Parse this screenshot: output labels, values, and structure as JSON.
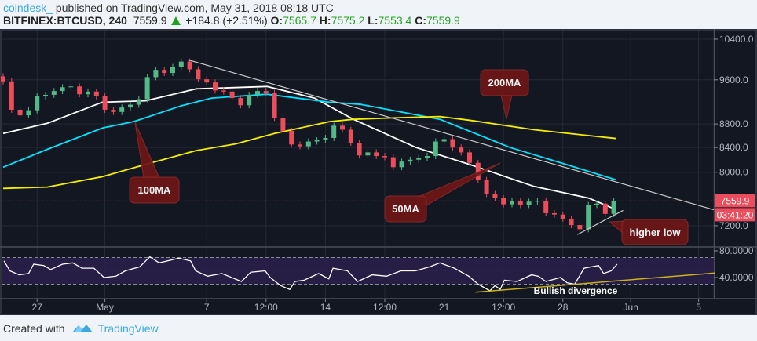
{
  "header": {
    "author": "coindesk_",
    "published": " published on TradingView.com, May 31, 2018 08:18 UTC",
    "symbol": "BITFINEX:BTCUSD, 240",
    "last": "7559.9",
    "change": "+184.8 (+2.51%)",
    "o_label": "O:",
    "o": "7565.7",
    "h_label": "H:",
    "h": "7575.2",
    "l_label": "L:",
    "l": "7553.4",
    "c_label": "C:",
    "c": "7559.9"
  },
  "footer": {
    "created_with": "Created with",
    "brand": "TradingView"
  },
  "colors": {
    "background": "#131722",
    "up": "#53b987",
    "down": "#eb4d5c",
    "ma50": "#ffffff",
    "ma100": "#00e5ff",
    "ma200": "#f5f000",
    "callout": "#6e1616",
    "rsi": "#ffffff",
    "rsi_band": "#2a1f4a"
  },
  "chart_data": {
    "type": "candlestick",
    "title": "BITFINEX:BTCUSD, 240",
    "x_start": "2018-04-25 00:00",
    "x_step_hours": 12,
    "note": "close prices approximated from chart, one per 12h",
    "close": [
      9570,
      9050,
      8950,
      9040,
      9290,
      9320,
      9390,
      9460,
      9475,
      9330,
      9380,
      9290,
      9050,
      9010,
      9090,
      9140,
      9240,
      9650,
      9790,
      9730,
      9845,
      9950,
      9800,
      9610,
      9550,
      9400,
      9380,
      9260,
      9130,
      9320,
      9390,
      9360,
      8905,
      8680,
      8450,
      8420,
      8500,
      8520,
      8560,
      8770,
      8700,
      8480,
      8270,
      8320,
      8260,
      8240,
      8080,
      8170,
      8200,
      8230,
      8260,
      8500,
      8540,
      8400,
      8320,
      8150,
      7880,
      7665,
      7600,
      7510,
      7560,
      7500,
      7550,
      7560,
      7380,
      7360,
      7300,
      7210,
      7150,
      7500,
      7520,
      7370,
      7559.9
    ],
    "moving_averages": [
      {
        "name": "50MA",
        "points": [
          [
            0,
            8635
          ],
          [
            5.2,
            8810
          ],
          [
            11.7,
            9185
          ],
          [
            16.8,
            9210
          ],
          [
            22.8,
            9430
          ],
          [
            31.1,
            9475
          ],
          [
            36.7,
            9260
          ],
          [
            41.3,
            8880
          ],
          [
            48.7,
            8400
          ],
          [
            55.2,
            8115
          ],
          [
            62.6,
            7780
          ],
          [
            69.1,
            7600
          ],
          [
            72.3,
            7430
          ]
        ]
      },
      {
        "name": "100MA",
        "points": [
          [
            0,
            8080
          ],
          [
            5.2,
            8370
          ],
          [
            11.7,
            8730
          ],
          [
            15.4,
            8840
          ],
          [
            20.9,
            9115
          ],
          [
            24.6,
            9260
          ],
          [
            31.1,
            9330
          ],
          [
            38.5,
            9185
          ],
          [
            42.2,
            9145
          ],
          [
            51.5,
            8880
          ],
          [
            59.8,
            8400
          ],
          [
            66.0,
            8140
          ],
          [
            72.3,
            7880
          ]
        ]
      },
      {
        "name": "200MA",
        "points": [
          [
            0,
            7750
          ],
          [
            5.2,
            7770
          ],
          [
            11.7,
            7930
          ],
          [
            17.2,
            8140
          ],
          [
            22.8,
            8350
          ],
          [
            27.4,
            8460
          ],
          [
            32.0,
            8635
          ],
          [
            38.5,
            8840
          ],
          [
            41.3,
            8880
          ],
          [
            45.9,
            8905
          ],
          [
            51.5,
            8930
          ],
          [
            55.2,
            8860
          ],
          [
            62.6,
            8700
          ],
          [
            72.3,
            8550
          ]
        ]
      }
    ],
    "trendlines": [
      {
        "name": "descending-resistance",
        "from": [
          21.9,
          9980
        ],
        "to": [
          83.8,
          7430
        ]
      },
      {
        "name": "higher-low-support",
        "from": [
          67.7,
          7075
        ],
        "to": [
          73.1,
          7420
        ]
      }
    ],
    "y_scale": "log",
    "ylim": [
      6890,
      10560
    ],
    "y_ticks": [
      "10400.0",
      "9600.0",
      "8800.0",
      "8400.0",
      "8000.0",
      "7200.0"
    ],
    "y_tick_values": [
      10400,
      9600,
      8800,
      8400,
      8000,
      7200
    ],
    "x_ticks": [
      {
        "label": "27",
        "index": 4
      },
      {
        "label": "May",
        "index": 12
      },
      {
        "label": "7",
        "index": 24
      },
      {
        "label": "12:00",
        "index": 31
      },
      {
        "label": "14",
        "index": 38
      },
      {
        "label": "12:00",
        "index": 45
      },
      {
        "label": "21",
        "index": 52
      },
      {
        "label": "12:00",
        "index": 59
      },
      {
        "label": "28",
        "index": 66
      },
      {
        "label": "Jun",
        "index": 74
      },
      {
        "label": "5",
        "index": 82
      }
    ],
    "last_price_label": "7559.9",
    "countdown": "03:41:20",
    "annotations": [
      "100MA",
      "200MA",
      "50MA",
      "higher low",
      "Bullish divergence"
    ],
    "rsi": {
      "ylim": [
        8,
        86
      ],
      "y_ticks": [
        "80.0000",
        "40.0000"
      ],
      "y_tick_values": [
        80,
        40
      ],
      "bands": [
        70,
        30
      ],
      "points": [
        [
          0.1,
          65
        ],
        [
          0.8,
          50
        ],
        [
          1.9,
          44
        ],
        [
          3.0,
          46
        ],
        [
          3.6,
          60
        ],
        [
          4.8,
          58
        ],
        [
          5.6,
          52
        ],
        [
          7.0,
          60
        ],
        [
          8.2,
          62
        ],
        [
          9.3,
          54
        ],
        [
          10.7,
          54
        ],
        [
          11.9,
          40
        ],
        [
          13.3,
          42
        ],
        [
          14.4,
          50
        ],
        [
          16.1,
          56
        ],
        [
          17.3,
          71
        ],
        [
          18.4,
          62
        ],
        [
          20.7,
          69
        ],
        [
          22.1,
          65
        ],
        [
          22.7,
          50
        ],
        [
          24.1,
          42
        ],
        [
          25.8,
          46
        ],
        [
          28.1,
          34
        ],
        [
          29.2,
          48
        ],
        [
          30.9,
          50
        ],
        [
          31.5,
          40
        ],
        [
          32.7,
          28
        ],
        [
          33.8,
          22
        ],
        [
          34.4,
          34
        ],
        [
          35.5,
          36
        ],
        [
          37.2,
          46
        ],
        [
          38.4,
          38
        ],
        [
          38.9,
          54
        ],
        [
          40.6,
          50
        ],
        [
          41.8,
          34
        ],
        [
          43.5,
          44
        ],
        [
          45.2,
          42
        ],
        [
          46.9,
          50
        ],
        [
          48.6,
          50
        ],
        [
          50.3,
          56
        ],
        [
          51.5,
          62
        ],
        [
          53.2,
          54
        ],
        [
          54.9,
          42
        ],
        [
          56.0,
          30
        ],
        [
          57.4,
          20
        ],
        [
          58.0,
          28
        ],
        [
          58.6,
          22
        ],
        [
          59.1,
          36
        ],
        [
          60.6,
          34
        ],
        [
          62.3,
          44
        ],
        [
          63.1,
          42
        ],
        [
          64.0,
          34
        ],
        [
          65.7,
          40
        ],
        [
          66.5,
          32
        ],
        [
          67.4,
          30
        ],
        [
          68.5,
          54
        ],
        [
          70.2,
          58
        ],
        [
          70.8,
          46
        ],
        [
          71.7,
          50
        ],
        [
          72.4,
          60
        ]
      ],
      "divergence_line": {
        "from": [
          55.7,
          18
        ],
        "to": [
          83.9,
          46.7
        ]
      }
    }
  }
}
